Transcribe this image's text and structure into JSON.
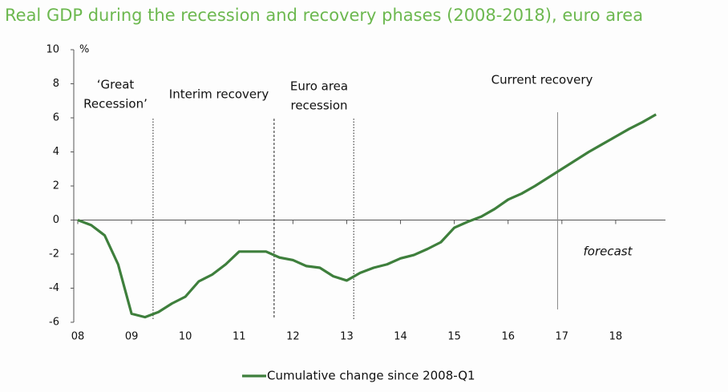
{
  "chart_data": {
    "type": "line",
    "title": "Real GDP during the recession and recovery phases (2008-2018), euro area",
    "ylabel": "%",
    "x": [
      8,
      8.25,
      8.5,
      8.75,
      9,
      9.25,
      9.5,
      9.75,
      10,
      10.25,
      10.5,
      10.75,
      11,
      11.25,
      11.5,
      11.75,
      12,
      12.25,
      12.5,
      12.75,
      13,
      13.25,
      13.5,
      13.75,
      14,
      14.25,
      14.5,
      14.75,
      15,
      15.25,
      15.5,
      15.75,
      16,
      16.25,
      16.5,
      16.75,
      17,
      17.25,
      17.5,
      17.75,
      18,
      18.25,
      18.5,
      18.75
    ],
    "series": [
      {
        "name": "Cumulative change since 2008-Q1",
        "color": "#3e7f3c",
        "values": [
          0,
          -0.3,
          -0.9,
          -2.6,
          -5.5,
          -5.7,
          -5.4,
          -4.9,
          -4.5,
          -3.6,
          -3.2,
          -2.6,
          -1.85,
          -1.85,
          -1.85,
          -2.2,
          -2.35,
          -2.7,
          -2.8,
          -3.3,
          -3.55,
          -3.1,
          -2.8,
          -2.6,
          -2.25,
          -2.05,
          -1.7,
          -1.3,
          -0.45,
          -0.1,
          0.2,
          0.65,
          1.2,
          1.55,
          2.0,
          2.5,
          3.0,
          3.5,
          4.0,
          4.45,
          4.9,
          5.35,
          5.75,
          6.2
        ]
      }
    ],
    "xlim": [
      8,
      19
    ],
    "xticks": [
      {
        "value": 8,
        "label": "08"
      },
      {
        "value": 9,
        "label": "09"
      },
      10,
      11,
      12,
      13,
      14,
      15,
      16,
      17,
      18
    ],
    "ylim": [
      -6,
      10
    ],
    "yticks": [
      -6,
      -4,
      -2,
      0,
      2,
      4,
      6,
      8,
      10
    ],
    "dividers": [
      9.4,
      11.65,
      13.13,
      16.92
    ],
    "annotations": [
      "‘Great",
      "Recession’",
      "Interim recovery",
      "Euro area",
      "recession",
      "Current recovery",
      "forecast"
    ]
  }
}
